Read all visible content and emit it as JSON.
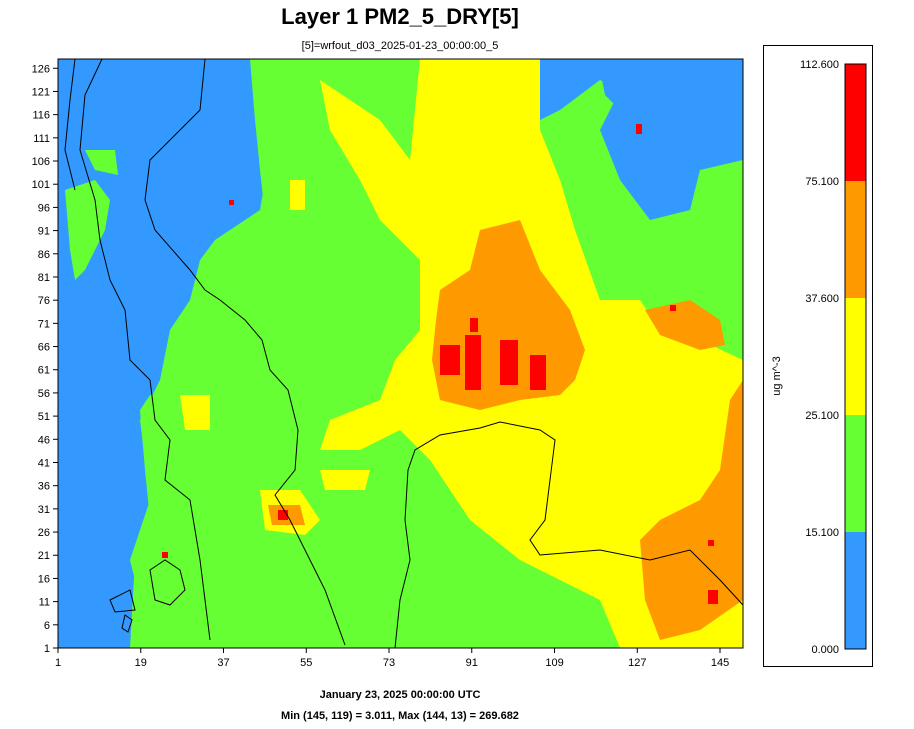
{
  "chart_data": {
    "type": "heatmap",
    "title": "Layer 1 PM2_5_DRY[5]",
    "subtitle": "[5]=wrfout_d03_2025-01-23_00:00:00_5",
    "x_ticks": [
      1,
      19,
      37,
      55,
      73,
      91,
      109,
      127,
      145
    ],
    "y_ticks": [
      1,
      6,
      11,
      16,
      21,
      26,
      31,
      36,
      41,
      46,
      51,
      56,
      61,
      66,
      71,
      76,
      81,
      86,
      91,
      96,
      101,
      106,
      111,
      116,
      121,
      126
    ],
    "xlim": [
      1,
      150
    ],
    "ylim": [
      1,
      128
    ],
    "date_label": "January 23, 2025 00:00:00 UTC",
    "stats_label": "Min (145, 119) = 3.011, Max (144, 13) = 269.682",
    "colorbar": {
      "unit": "ug m^-3",
      "levels": [
        "0.000",
        "15.100",
        "25.100",
        "37.600",
        "75.100",
        "112.600"
      ],
      "colors": [
        "#3399ff",
        "#66ff33",
        "#ffff00",
        "#ff9900",
        "#ff0000"
      ]
    }
  }
}
